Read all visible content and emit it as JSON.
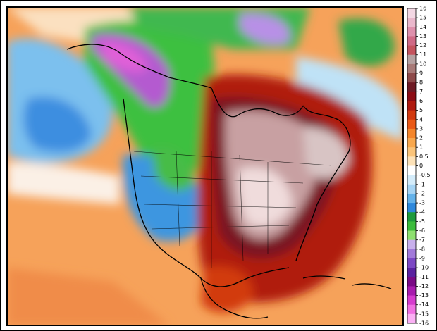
{
  "colorbar": {
    "ticks": [
      16,
      15,
      14,
      13,
      12,
      11,
      10,
      9,
      8,
      7,
      6,
      5,
      4,
      3,
      2,
      1,
      0.5,
      0,
      -0.5,
      -1,
      -2,
      -3,
      -4,
      -5,
      -6,
      -7,
      -8,
      -9,
      -10,
      -11,
      -12,
      -13,
      -14,
      -15,
      -16
    ],
    "colors": [
      "#f4d8e4",
      "#eab8cc",
      "#de90ac",
      "#d06a86",
      "#c4545e",
      "#b6a2a2",
      "#a87a78",
      "#8e4a4a",
      "#6e1a24",
      "#8c0c14",
      "#b01a10",
      "#d23a10",
      "#ea5a18",
      "#f4862c",
      "#f8a84e",
      "#fac47a",
      "#fde2b8",
      "#ffffff",
      "#d4ecfa",
      "#a6d4f4",
      "#64b2ea",
      "#2e88dc",
      "#1e9a3c",
      "#3cbc3c",
      "#8ee070",
      "#c8b0ec",
      "#a27ada",
      "#7c48c4",
      "#5a22a0",
      "#7a0a86",
      "#a81cae",
      "#d63cce",
      "#f070e2",
      "#fab0f4"
    ]
  }
}
